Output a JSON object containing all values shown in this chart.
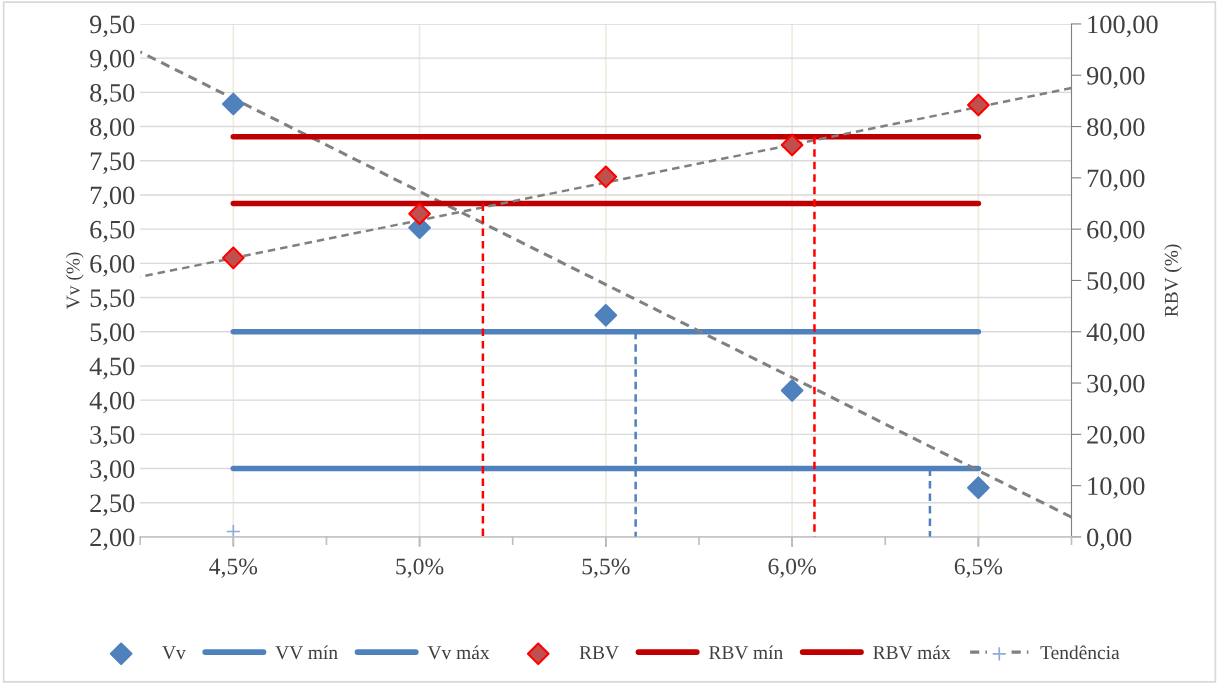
{
  "chart_data": {
    "type": "scatter",
    "ylabel": "Vv (%)",
    "y2label": "RBV (%)",
    "xlim": [
      4.25,
      6.75
    ],
    "xticks": [
      {
        "value": 4.25,
        "label": null
      },
      {
        "value": 4.5,
        "label": "4,5%"
      },
      {
        "value": 4.75,
        "label": null
      },
      {
        "value": 5.0,
        "label": "5,0%"
      },
      {
        "value": 5.25,
        "label": null
      },
      {
        "value": 5.5,
        "label": "5,5%"
      },
      {
        "value": 5.75,
        "label": null
      },
      {
        "value": 6.0,
        "label": "6,0%"
      },
      {
        "value": 6.25,
        "label": null
      },
      {
        "value": 6.5,
        "label": "6,5%"
      },
      {
        "value": 6.75,
        "label": null
      }
    ],
    "ylim": [
      2.0,
      9.5
    ],
    "yticks": [
      {
        "value": 2.0,
        "label": "2,00"
      },
      {
        "value": 2.5,
        "label": "2,50"
      },
      {
        "value": 3.0,
        "label": "3,00"
      },
      {
        "value": 3.5,
        "label": "3,50"
      },
      {
        "value": 4.0,
        "label": "4,00"
      },
      {
        "value": 4.5,
        "label": "4,50"
      },
      {
        "value": 5.0,
        "label": "5,00"
      },
      {
        "value": 5.5,
        "label": "5,50"
      },
      {
        "value": 6.0,
        "label": "6,00"
      },
      {
        "value": 6.5,
        "label": "6,50"
      },
      {
        "value": 7.0,
        "label": "7,00"
      },
      {
        "value": 7.5,
        "label": "7,50"
      },
      {
        "value": 8.0,
        "label": "8,00"
      },
      {
        "value": 8.5,
        "label": "8,50"
      },
      {
        "value": 9.0,
        "label": "9,00"
      },
      {
        "value": 9.5,
        "label": "9,50"
      }
    ],
    "y2lim": [
      0,
      100
    ],
    "y2ticks": [
      {
        "value": 0,
        "label": "0,00"
      },
      {
        "value": 10,
        "label": "10,00"
      },
      {
        "value": 20,
        "label": "20,00"
      },
      {
        "value": 30,
        "label": "30,00"
      },
      {
        "value": 40,
        "label": "40,00"
      },
      {
        "value": 50,
        "label": "50,00"
      },
      {
        "value": 60,
        "label": "60,00"
      },
      {
        "value": 70,
        "label": "70,00"
      },
      {
        "value": 80,
        "label": "80,00"
      },
      {
        "value": 90,
        "label": "90,00"
      },
      {
        "value": 100,
        "label": "100,00"
      }
    ],
    "grid": true,
    "legend": "bottom",
    "series": [
      {
        "name": "Vv",
        "type": "scatter",
        "marker": "diamond",
        "color": "#4f81bd",
        "x": [
          4.5,
          5.0,
          5.5,
          6.0,
          6.5
        ],
        "values": [
          8.33,
          6.52,
          5.24,
          4.14,
          2.72
        ]
      },
      {
        "name": "VV mín",
        "type": "line",
        "marker": "none",
        "line_style": "solid",
        "color": "#4f81bd",
        "x": [
          4.5,
          6.5
        ],
        "values": [
          5.0,
          5.0
        ]
      },
      {
        "name": "Vv máx",
        "type": "line",
        "marker": "none",
        "line_style": "solid",
        "color": "#4f81bd",
        "x": [
          4.5,
          6.5
        ],
        "values": [
          3.0,
          3.0
        ]
      },
      {
        "name": "RBV",
        "type": "scatter",
        "marker": "diamond",
        "axis": "y2",
        "color": "#c0504d",
        "x": [
          4.5,
          5.0,
          5.5,
          6.0,
          6.5
        ],
        "values": [
          54.4,
          63.0,
          70.2,
          76.4,
          84.2
        ]
      },
      {
        "name": "RBV mín",
        "type": "line",
        "marker": "none",
        "line_style": "solid",
        "axis": "y2",
        "color": "#c00000",
        "x": [
          4.5,
          6.5
        ],
        "values": [
          65.0,
          65.0
        ]
      },
      {
        "name": "RBV máx",
        "type": "line",
        "marker": "none",
        "line_style": "solid",
        "axis": "y2",
        "color": "#c00000",
        "x": [
          4.5,
          6.5
        ],
        "values": [
          78.0,
          78.0
        ]
      },
      {
        "name": "Tendência",
        "type": "line",
        "marker": "none",
        "line_style": "dashed",
        "color": "#808080",
        "x": [
          4.25,
          6.75
        ],
        "values": [
          9.09,
          2.29
        ]
      },
      {
        "type": "scatter",
        "marker": "cross",
        "color": "#8faadc",
        "x": [
          4.5
        ],
        "values": [
          2.08
        ]
      },
      {
        "type": "line",
        "marker": "none",
        "line_style": "dashed",
        "axis": "y2",
        "color": "#808080",
        "x": [
          4.25,
          6.75
        ],
        "values": [
          50.7,
          87.5
        ]
      },
      {
        "type": "line",
        "marker": "none",
        "line_style": "dashed",
        "axis": "y2",
        "color": "#ff0000",
        "x": [
          5.17,
          5.17
        ],
        "values": [
          0,
          65.0
        ]
      },
      {
        "type": "line",
        "marker": "none",
        "line_style": "dashed",
        "axis": "y2",
        "color": "#ff0000",
        "x": [
          6.06,
          6.06
        ],
        "values": [
          0,
          78.0
        ]
      },
      {
        "type": "line",
        "marker": "none",
        "line_style": "dashed",
        "color": "#4f81bd",
        "x": [
          5.58,
          5.58
        ],
        "values": [
          2.0,
          5.0
        ]
      },
      {
        "type": "line",
        "marker": "none",
        "line_style": "dashed",
        "color": "#4f81bd",
        "x": [
          6.37,
          6.37
        ],
        "values": [
          2.0,
          3.0
        ]
      }
    ]
  }
}
